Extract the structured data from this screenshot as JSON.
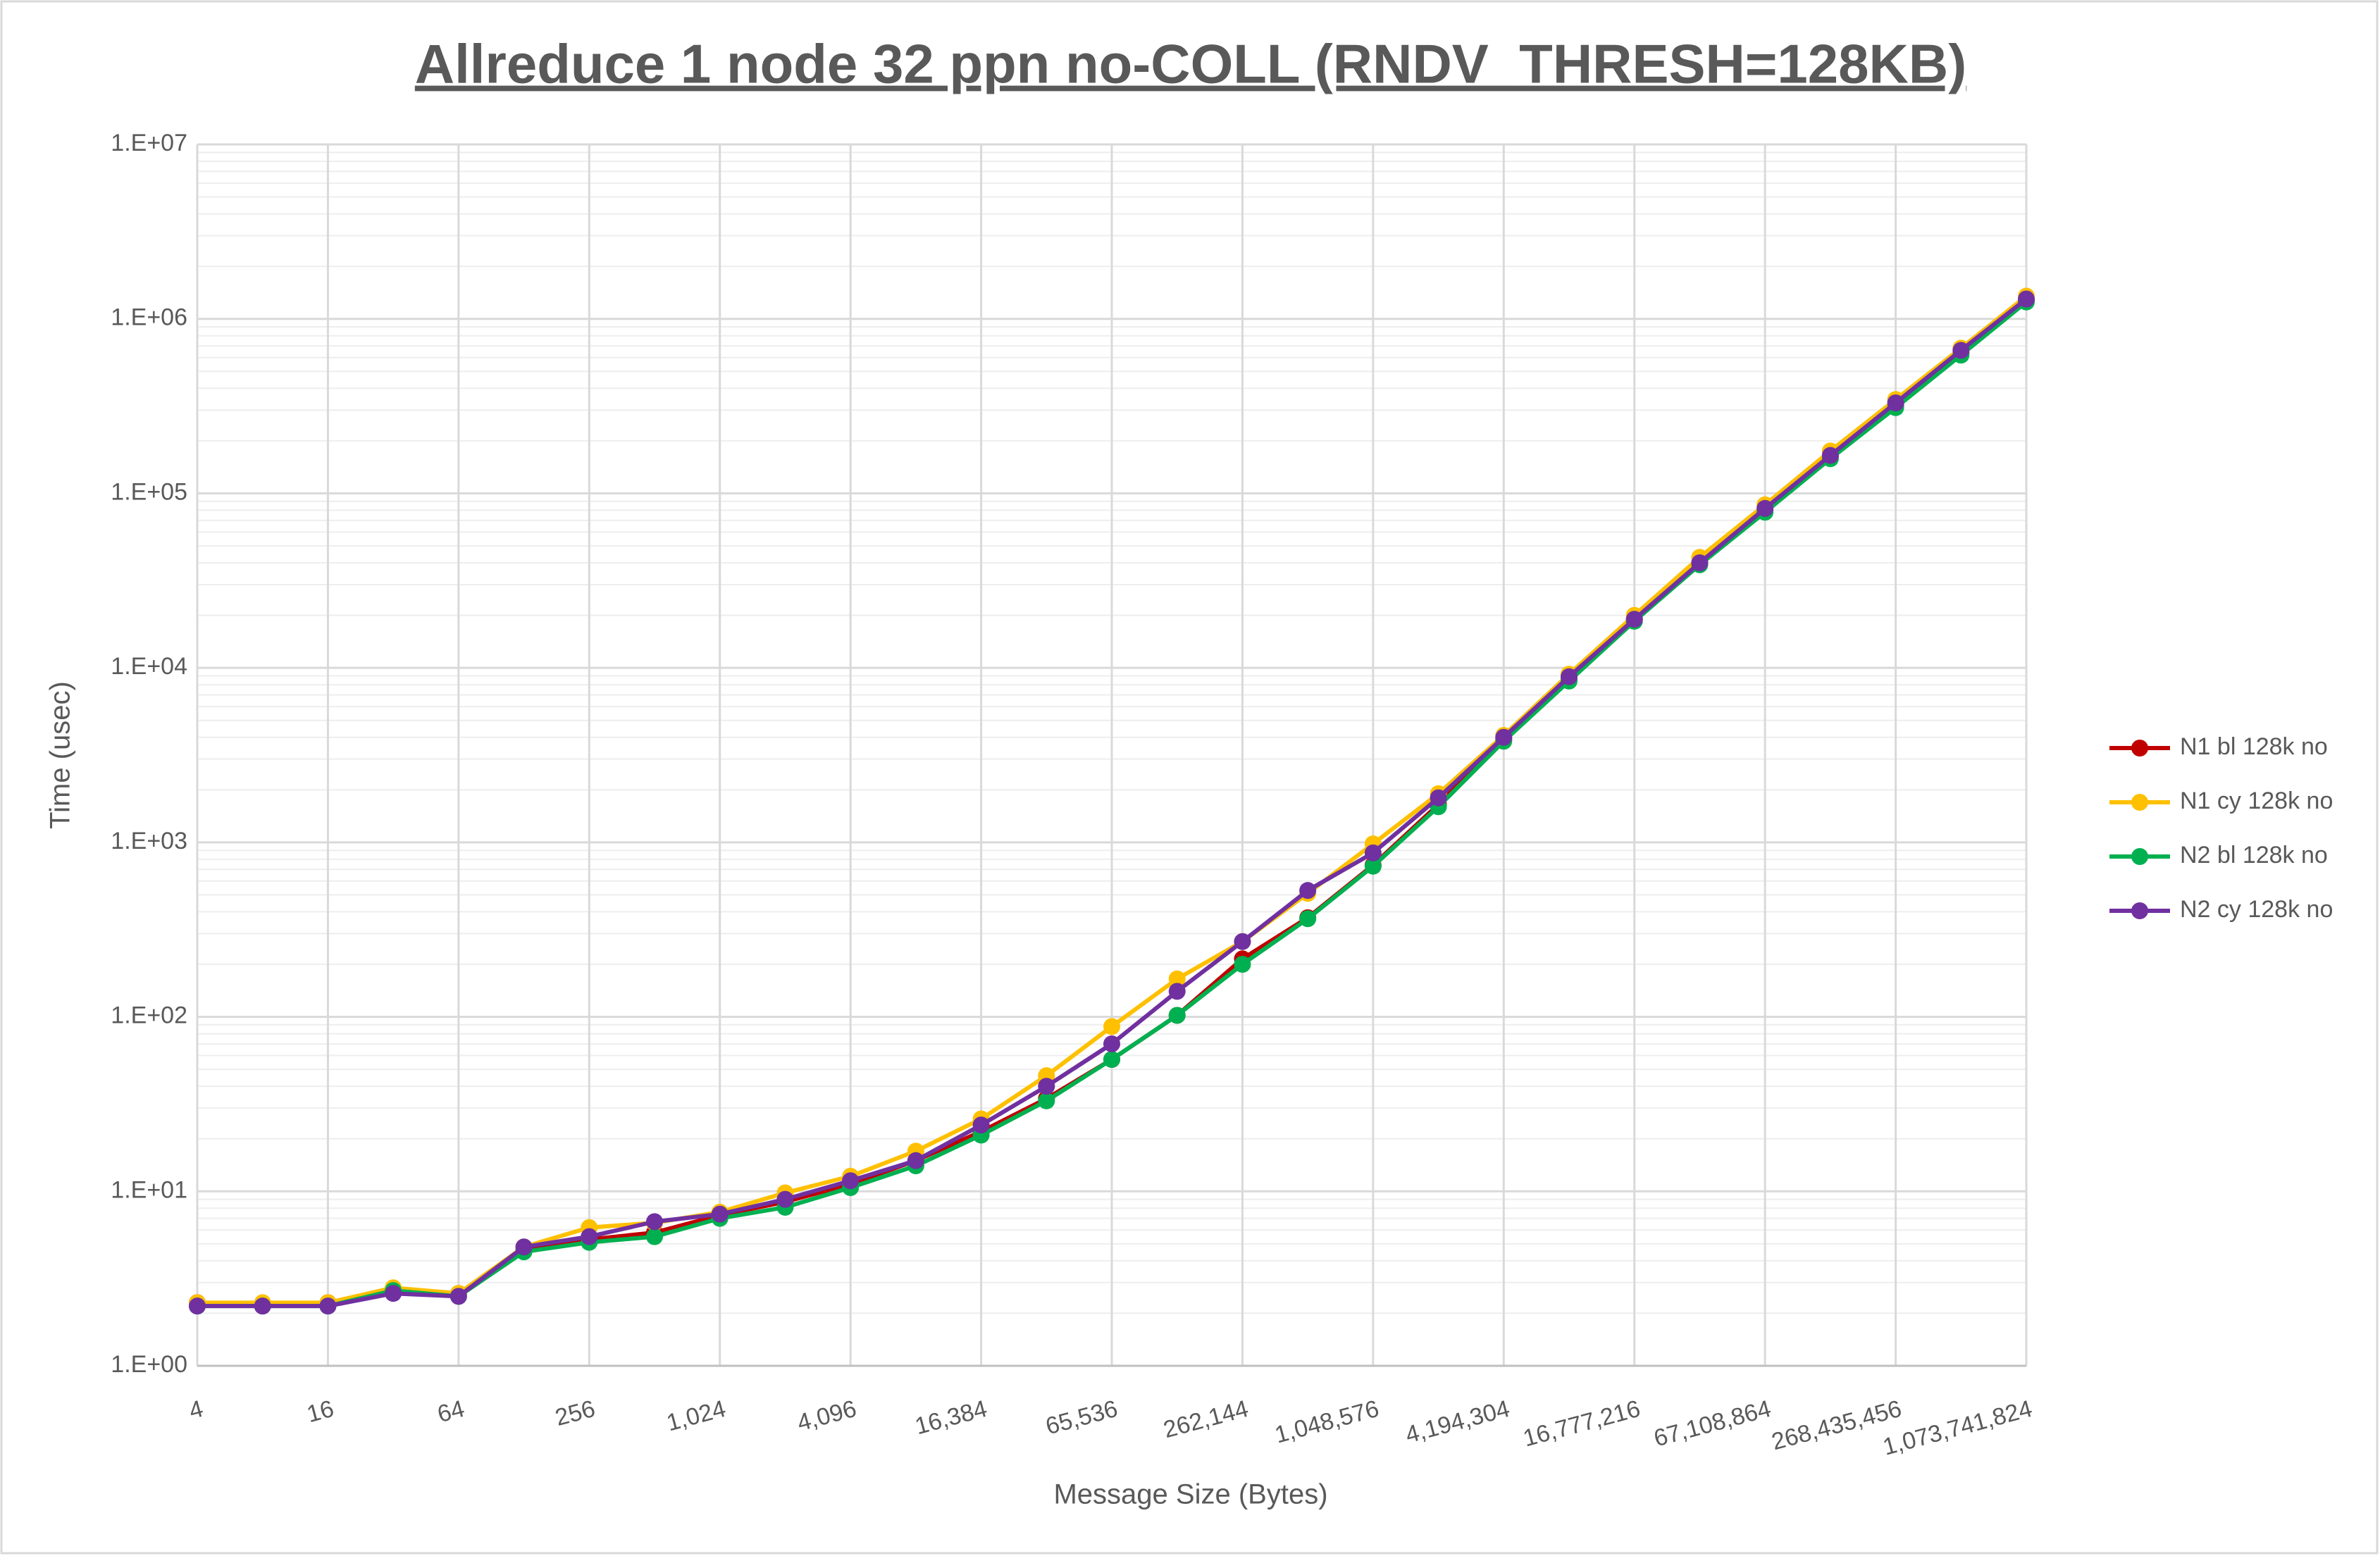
{
  "chart_data": {
    "type": "line",
    "title": "Allreduce 1 node 32 ppn no-COLL (RNDV_THRESH=128KB)",
    "x_label": "Message Size (Bytes)",
    "y_label": "Time (usec)",
    "x": [
      4,
      8,
      16,
      32,
      64,
      128,
      256,
      512,
      1024,
      2048,
      4096,
      8192,
      16384,
      32768,
      65536,
      131072,
      262144,
      524288,
      1048576,
      2097152,
      4194304,
      8388608,
      16777216,
      33554432,
      67108864,
      134217728,
      268435456,
      536870912,
      1073741824
    ],
    "xscale": "log",
    "yscale": "log",
    "xlim": [
      4,
      1073741824
    ],
    "ylim": [
      1,
      10000000
    ],
    "xticks": [
      4,
      16,
      64,
      256,
      {
        "value": 1024,
        "label": "1,024"
      },
      {
        "value": 4096,
        "label": "4,096"
      },
      {
        "value": 16384,
        "label": "16,384"
      },
      {
        "value": 65536,
        "label": "65,536"
      },
      {
        "value": 262144,
        "label": "262,144"
      },
      {
        "value": 1048576,
        "label": "1,048,576"
      },
      {
        "value": 4194304,
        "label": "4,194,304"
      },
      {
        "value": 16777216,
        "label": "16,777,216"
      },
      {
        "value": 67108864,
        "label": "67,108,864"
      },
      {
        "value": 268435456,
        "label": "268,435,456"
      },
      {
        "value": 1073741824,
        "label": "1,073,741,824"
      }
    ],
    "yticks": [
      {
        "value": 1,
        "label": "1.E+00"
      },
      {
        "value": 10,
        "label": "1.E+01"
      },
      {
        "value": 100,
        "label": "1.E+02"
      },
      {
        "value": 1000,
        "label": "1.E+03"
      },
      {
        "value": 10000,
        "label": "1.E+04"
      },
      {
        "value": 100000,
        "label": "1.E+05"
      },
      {
        "value": 1000000,
        "label": "1.E+06"
      },
      {
        "value": 10000000,
        "label": "1.E+07"
      }
    ],
    "grid": true,
    "minor_grid": true,
    "legend": "right",
    "series": [
      {
        "name": "N1 bl 128k no",
        "color": "#c00000",
        "values": [
          2.3,
          2.2,
          2.3,
          2.7,
          2.6,
          4.6,
          5.3,
          5.8,
          7.3,
          8.7,
          11,
          15,
          22,
          34,
          57,
          102,
          215,
          370,
          740,
          1650,
          3900,
          8600,
          19000,
          40000,
          80000,
          162000,
          320000,
          640000,
          1280000
        ]
      },
      {
        "name": "N1 cy 128k no",
        "color": "#ffc000",
        "values": [
          2.3,
          2.3,
          2.3,
          2.8,
          2.6,
          4.8,
          6.2,
          6.6,
          7.6,
          9.8,
          12.2,
          17,
          26,
          46,
          88,
          165,
          270,
          510,
          980,
          1900,
          4100,
          9200,
          20000,
          43000,
          86000,
          175000,
          345000,
          680000,
          1350000
        ]
      },
      {
        "name": "N2 bl 128k no",
        "color": "#00b050",
        "values": [
          2.2,
          2.2,
          2.2,
          2.7,
          2.5,
          4.5,
          5.1,
          5.5,
          7.0,
          8.1,
          10.5,
          14,
          21,
          33,
          57,
          102,
          200,
          365,
          730,
          1600,
          3800,
          8400,
          18500,
          39000,
          78000,
          158000,
          310000,
          620000,
          1250000
        ]
      },
      {
        "name": "N2 cy 128k no",
        "color": "#7030a0",
        "values": [
          2.2,
          2.2,
          2.2,
          2.6,
          2.5,
          4.8,
          5.5,
          6.7,
          7.4,
          9.0,
          11.5,
          15,
          24,
          40,
          70,
          140,
          270,
          530,
          870,
          1800,
          4000,
          8900,
          19000,
          40000,
          82000,
          165000,
          330000,
          660000,
          1300000
        ]
      }
    ]
  }
}
